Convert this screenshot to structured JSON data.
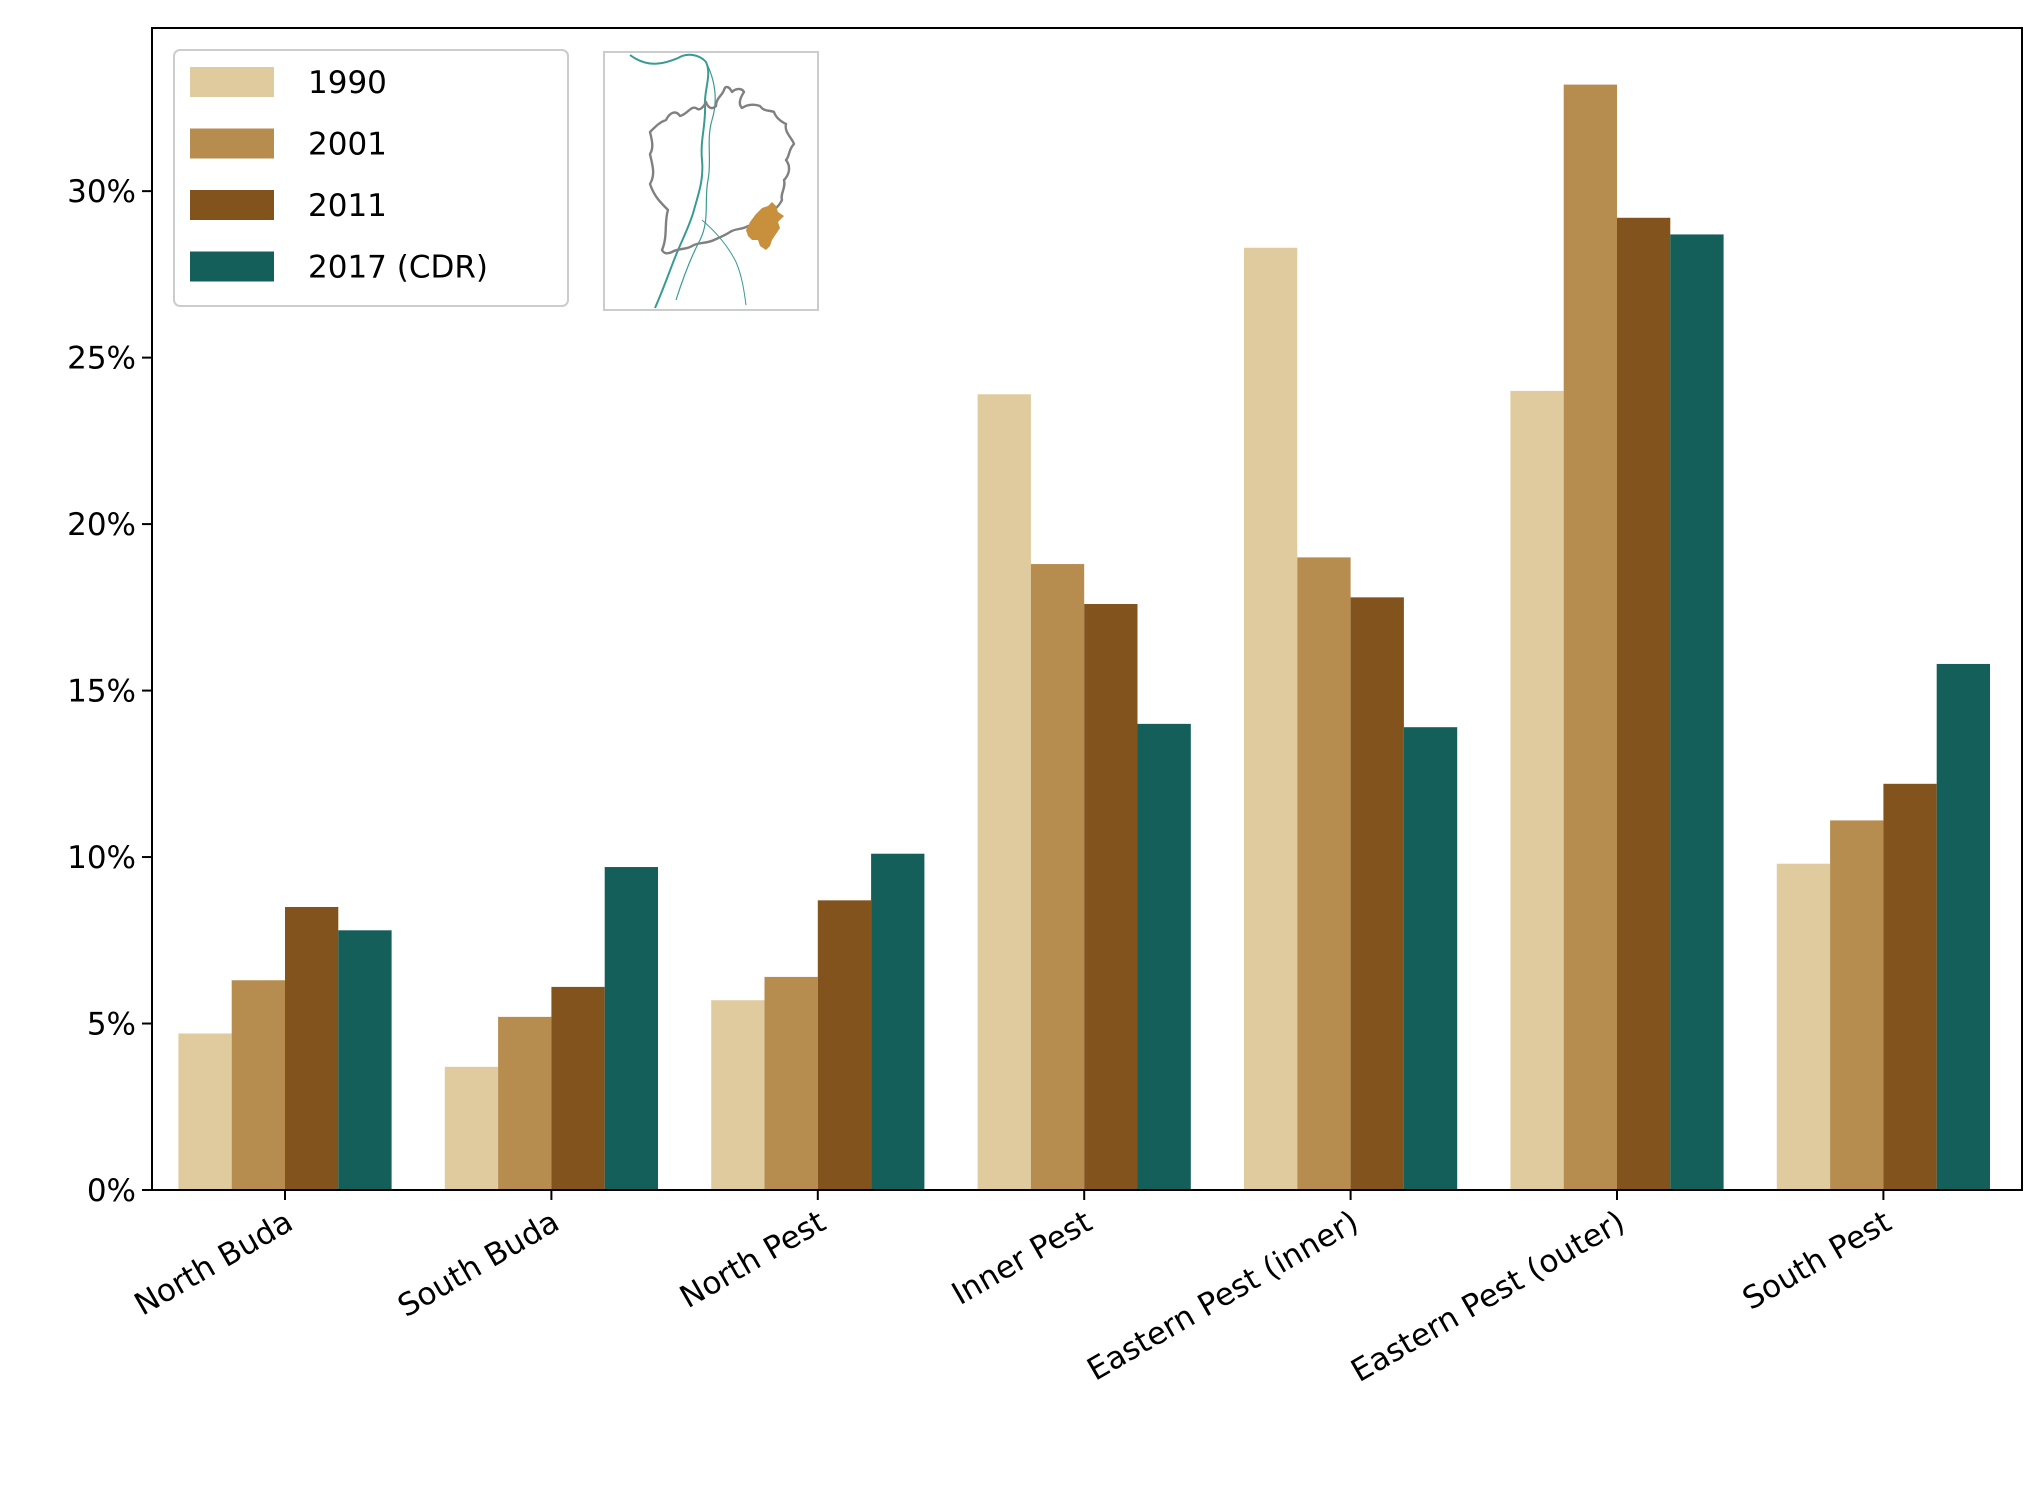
{
  "chart_data": {
    "type": "bar",
    "title": "",
    "xlabel": "",
    "ylabel": "",
    "categories": [
      "North Buda",
      "South Buda",
      "North Pest",
      "Inner Pest",
      "Eastern Pest (inner)",
      "Eastern Pest (outer)",
      "South Pest"
    ],
    "series": [
      {
        "name": "1990",
        "color": "#dfcb9e",
        "values": [
          4.7,
          3.7,
          5.7,
          23.9,
          28.3,
          24.0,
          9.8
        ]
      },
      {
        "name": "2001",
        "color": "#b68c4f",
        "values": [
          6.3,
          5.2,
          6.4,
          18.8,
          19.0,
          33.2,
          11.1
        ]
      },
      {
        "name": "2011",
        "color": "#83531e",
        "values": [
          8.5,
          6.1,
          8.7,
          17.6,
          17.8,
          29.2,
          12.2
        ]
      },
      {
        "name": "2017 (CDR)",
        "color": "#155f5a",
        "values": [
          7.8,
          9.7,
          10.1,
          14.0,
          13.9,
          28.7,
          15.8
        ]
      }
    ],
    "ylim": [
      0,
      34.9
    ],
    "yticks": [
      0,
      5,
      10,
      15,
      20,
      25,
      30
    ],
    "yticklabels": [
      "0%",
      "5%",
      "10%",
      "15%",
      "20%",
      "25%",
      "30%"
    ],
    "legend_position": "top-left",
    "grid": false
  },
  "inset_map": {
    "highlight_color": "#c8903c",
    "outline_color": "#808080",
    "river_color": "#3a9b92"
  }
}
